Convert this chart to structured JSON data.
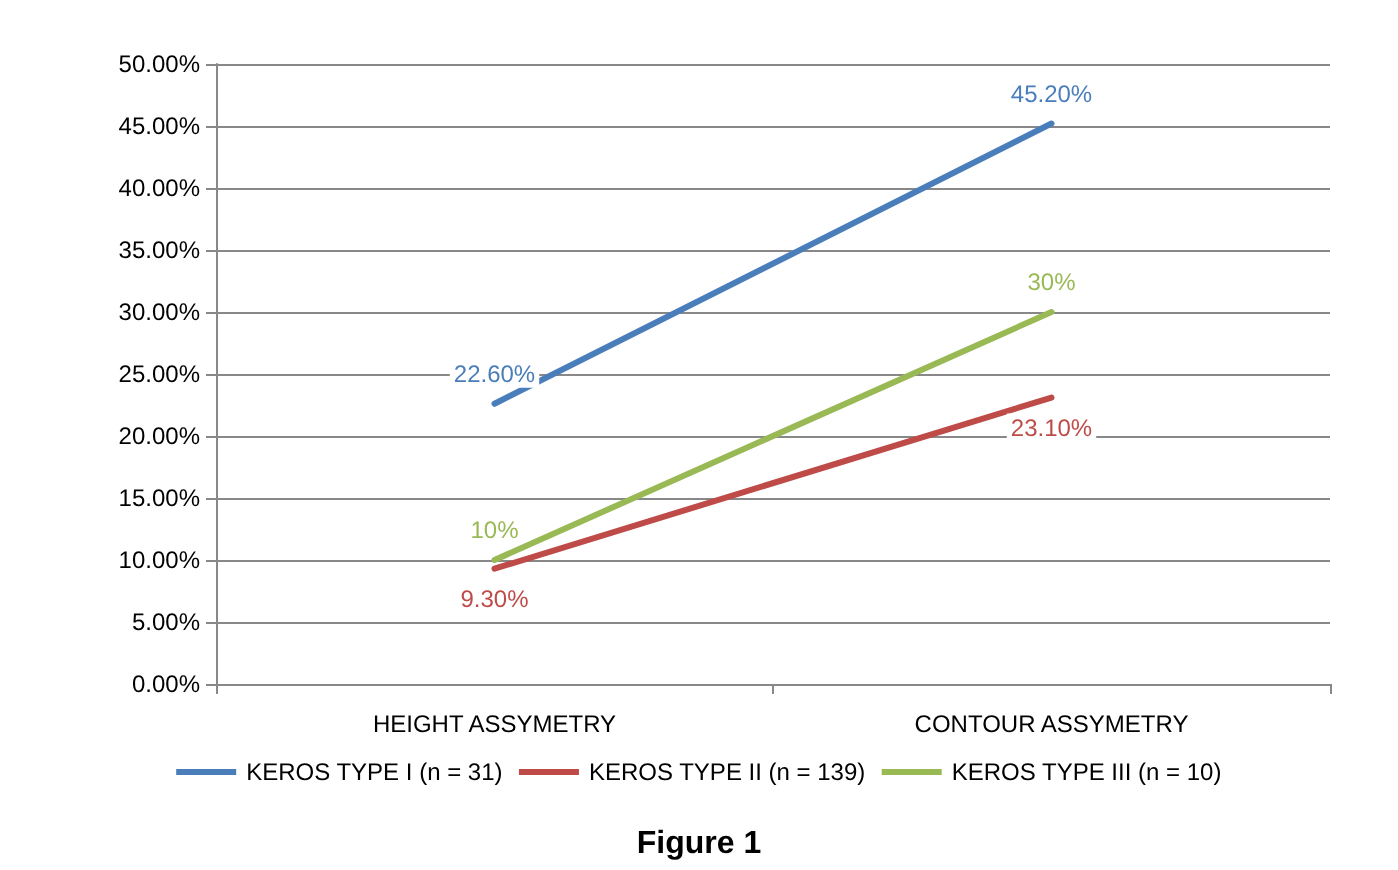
{
  "chart_data": {
    "type": "line",
    "title": "Figure 1",
    "categories": [
      "HEIGHT ASSYMETRY",
      "CONTOUR ASSYMETRY"
    ],
    "series": [
      {
        "name": "KEROS TYPE I (n = 31)",
        "color": "#4a7ebb",
        "values": [
          22.6,
          45.2
        ],
        "value_labels": [
          "22.60%",
          "45.20%"
        ]
      },
      {
        "name": "KEROS TYPE II (n = 139)",
        "color": "#be4b48",
        "values": [
          9.3,
          23.1
        ],
        "value_labels": [
          "9.30%",
          "23.10%"
        ]
      },
      {
        "name": "KEROS TYPE III (n = 10)",
        "color": "#98b954",
        "values": [
          10,
          30
        ],
        "value_labels": [
          "10%",
          "30%"
        ]
      }
    ],
    "ylim": [
      0,
      50
    ],
    "yticks": [
      {
        "value": 0,
        "label": "0.00%"
      },
      {
        "value": 5,
        "label": "5.00%"
      },
      {
        "value": 10,
        "label": "10.00%"
      },
      {
        "value": 15,
        "label": "15.00%"
      },
      {
        "value": 20,
        "label": "20.00%"
      },
      {
        "value": 25,
        "label": "25.00%"
      },
      {
        "value": 30,
        "label": "30.00%"
      },
      {
        "value": 35,
        "label": "35.00%"
      },
      {
        "value": 40,
        "label": "40.00%"
      },
      {
        "value": 45,
        "label": "45.00%"
      },
      {
        "value": 50,
        "label": "50.00%"
      }
    ],
    "grid": "y",
    "legend": "bottom",
    "marker": "none",
    "line_style": "solid"
  }
}
